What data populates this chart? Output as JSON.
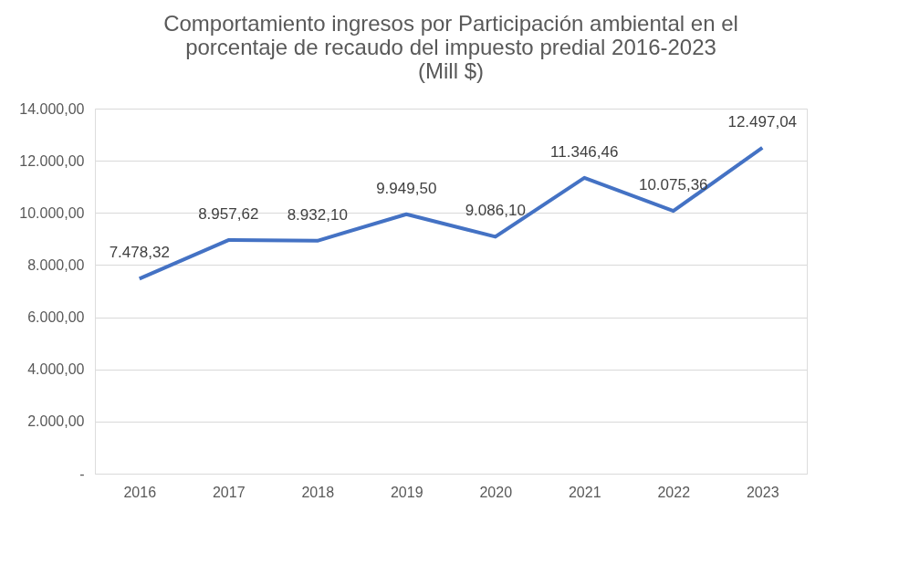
{
  "chart_data": {
    "type": "line",
    "title": "Comportamiento ingresos por Participación ambiental en el\nporcentaje de recaudo del impuesto predial 2016-2023\n(Mill $)",
    "categories": [
      "2016",
      "2017",
      "2018",
      "2019",
      "2020",
      "2021",
      "2022",
      "2023"
    ],
    "series": [
      {
        "color": "#4472c4",
        "values": [
          7478.32,
          8957.62,
          8932.1,
          9949.5,
          9086.1,
          11346.46,
          10075.36,
          12497.04
        ],
        "value_labels": [
          "7.478,32",
          "8.957,62",
          "8.932,10",
          "9.949,50",
          "9.086,10",
          "11.346,46",
          "10.075,36",
          "12.497,04"
        ]
      }
    ],
    "ylim": [
      0,
      14000
    ],
    "yticks": [
      {
        "value": 0,
        "label": "-"
      },
      {
        "value": 2000,
        "label": "2.000,00"
      },
      {
        "value": 4000,
        "label": "4.000,00"
      },
      {
        "value": 6000,
        "label": "6.000,00"
      },
      {
        "value": 8000,
        "label": "8.000,00"
      },
      {
        "value": 10000,
        "label": "10.000,00"
      },
      {
        "value": 12000,
        "label": "12.000,00"
      },
      {
        "value": 14000,
        "label": "14.000,00"
      }
    ],
    "grid": "y",
    "marker": "none",
    "line_style": "solid"
  }
}
